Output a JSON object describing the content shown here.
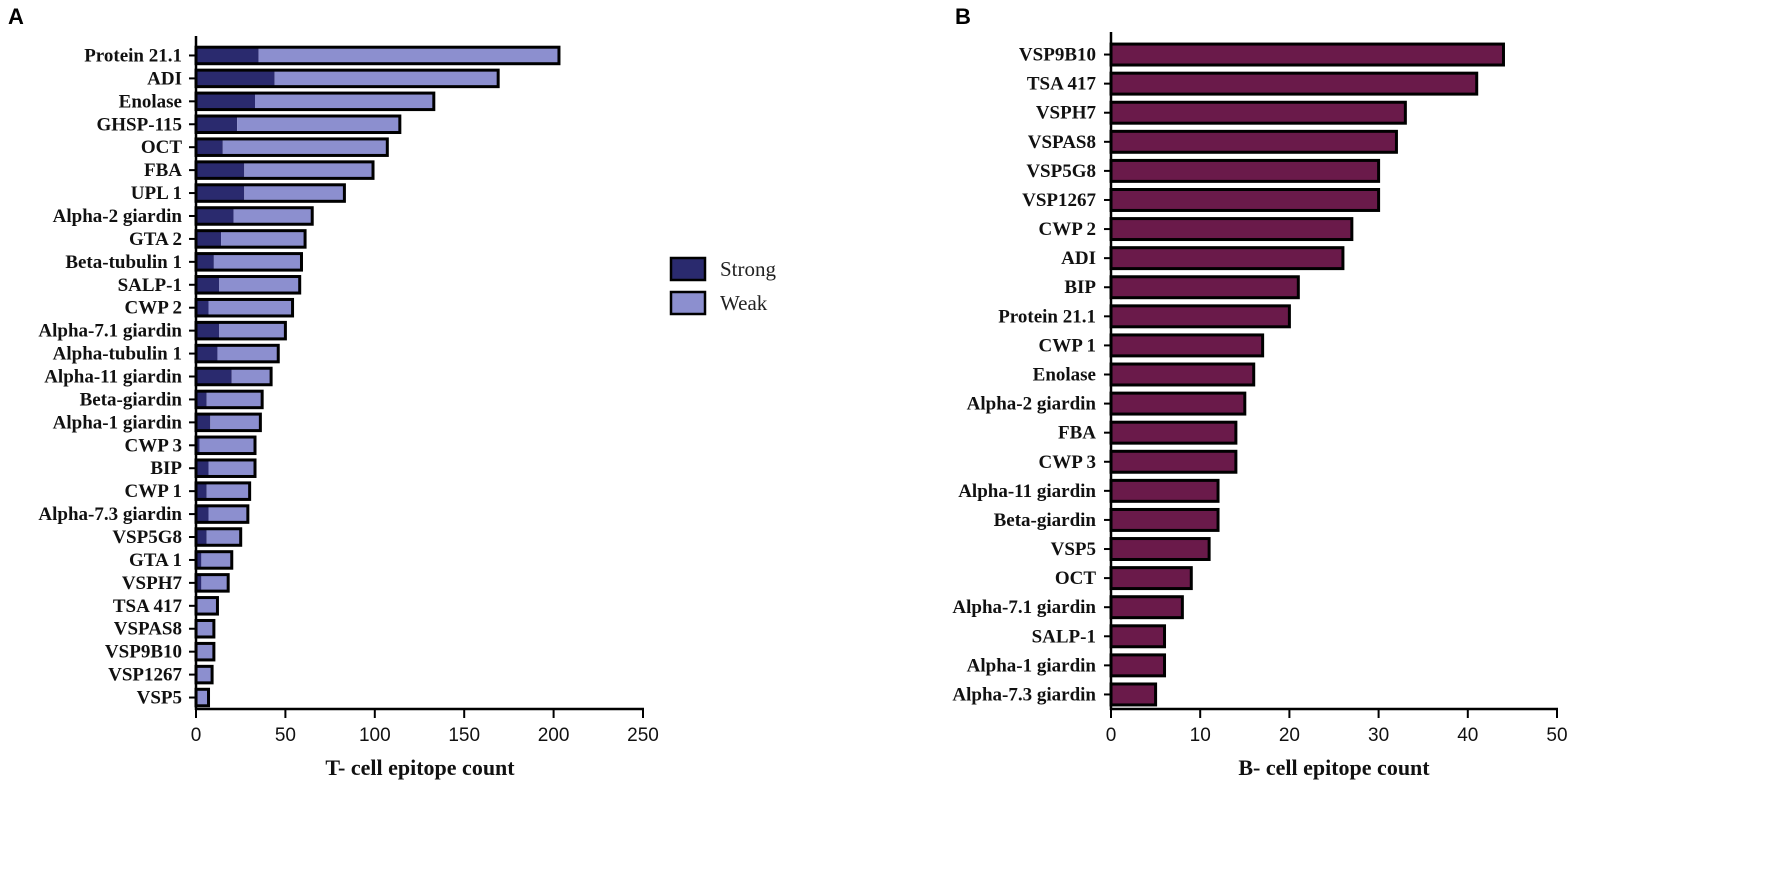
{
  "chart_data": [
    {
      "panel": "A",
      "type": "bar",
      "orientation": "horizontal",
      "stacked": true,
      "xlabel": "T- cell epitope count",
      "xlim": [
        0,
        250
      ],
      "xticks": [
        0,
        50,
        100,
        150,
        200,
        250
      ],
      "categories": [
        "Protein 21.1",
        "ADI",
        "Enolase",
        "GHSP-115",
        "OCT",
        "FBA",
        "UPL 1",
        "Alpha-2 giardin",
        "GTA 2",
        "Beta-tubulin 1",
        "SALP-1",
        "CWP 2",
        "Alpha-7.1 giardin",
        "Alpha-tubulin 1",
        "Alpha-11 giardin",
        "Beta-giardin",
        "Alpha-1 giardin",
        "CWP 3",
        "BIP",
        "CWP 1",
        "Alpha-7.3 giardin",
        "VSP5G8",
        "GTA 1",
        "VSPH7",
        "TSA 417",
        "VSPAS8",
        "VSP9B10",
        "VSP1267",
        "VSP5"
      ],
      "series": [
        {
          "name": "Strong",
          "color": "#2a2a6e",
          "values": [
            35,
            44,
            33,
            23,
            15,
            27,
            27,
            21,
            14,
            10,
            13,
            7,
            13,
            12,
            20,
            6,
            8,
            2,
            7,
            6,
            7,
            6,
            3,
            3,
            1,
            1,
            1,
            1,
            1
          ]
        },
        {
          "name": "Weak",
          "color": "#8c8fcf",
          "values": [
            168,
            125,
            100,
            91,
            92,
            72,
            56,
            44,
            47,
            49,
            45,
            47,
            37,
            34,
            22,
            31,
            28,
            31,
            26,
            24,
            22,
            19,
            17,
            15,
            11,
            9,
            9,
            8,
            6
          ]
        }
      ],
      "legend": [
        "Strong",
        "Weak"
      ]
    },
    {
      "panel": "B",
      "type": "bar",
      "orientation": "horizontal",
      "stacked": false,
      "xlabel": "B- cell epitope count",
      "xlim": [
        0,
        50
      ],
      "xticks": [
        0,
        10,
        20,
        30,
        40,
        50
      ],
      "categories": [
        "VSP9B10",
        "TSA 417",
        "VSPH7",
        "VSPAS8",
        "VSP5G8",
        "VSP1267",
        "CWP 2",
        "ADI",
        "BIP",
        "Protein 21.1",
        "CWP 1",
        "Enolase",
        "Alpha-2 giardin",
        "FBA",
        "CWP 3",
        "Alpha-11 giardin",
        "Beta-giardin",
        "VSP5",
        "OCT",
        "Alpha-7.1 giardin",
        "SALP-1",
        "Alpha-1 giardin",
        "Alpha-7.3 giardin"
      ],
      "series": [
        {
          "name": "B-cell",
          "color": "#6a1a4a",
          "values": [
            44,
            41,
            33,
            32,
            30,
            30,
            27,
            26,
            21,
            20,
            17,
            16,
            15,
            14,
            14,
            12,
            12,
            11,
            9,
            8,
            6,
            6,
            5
          ]
        }
      ]
    }
  ]
}
